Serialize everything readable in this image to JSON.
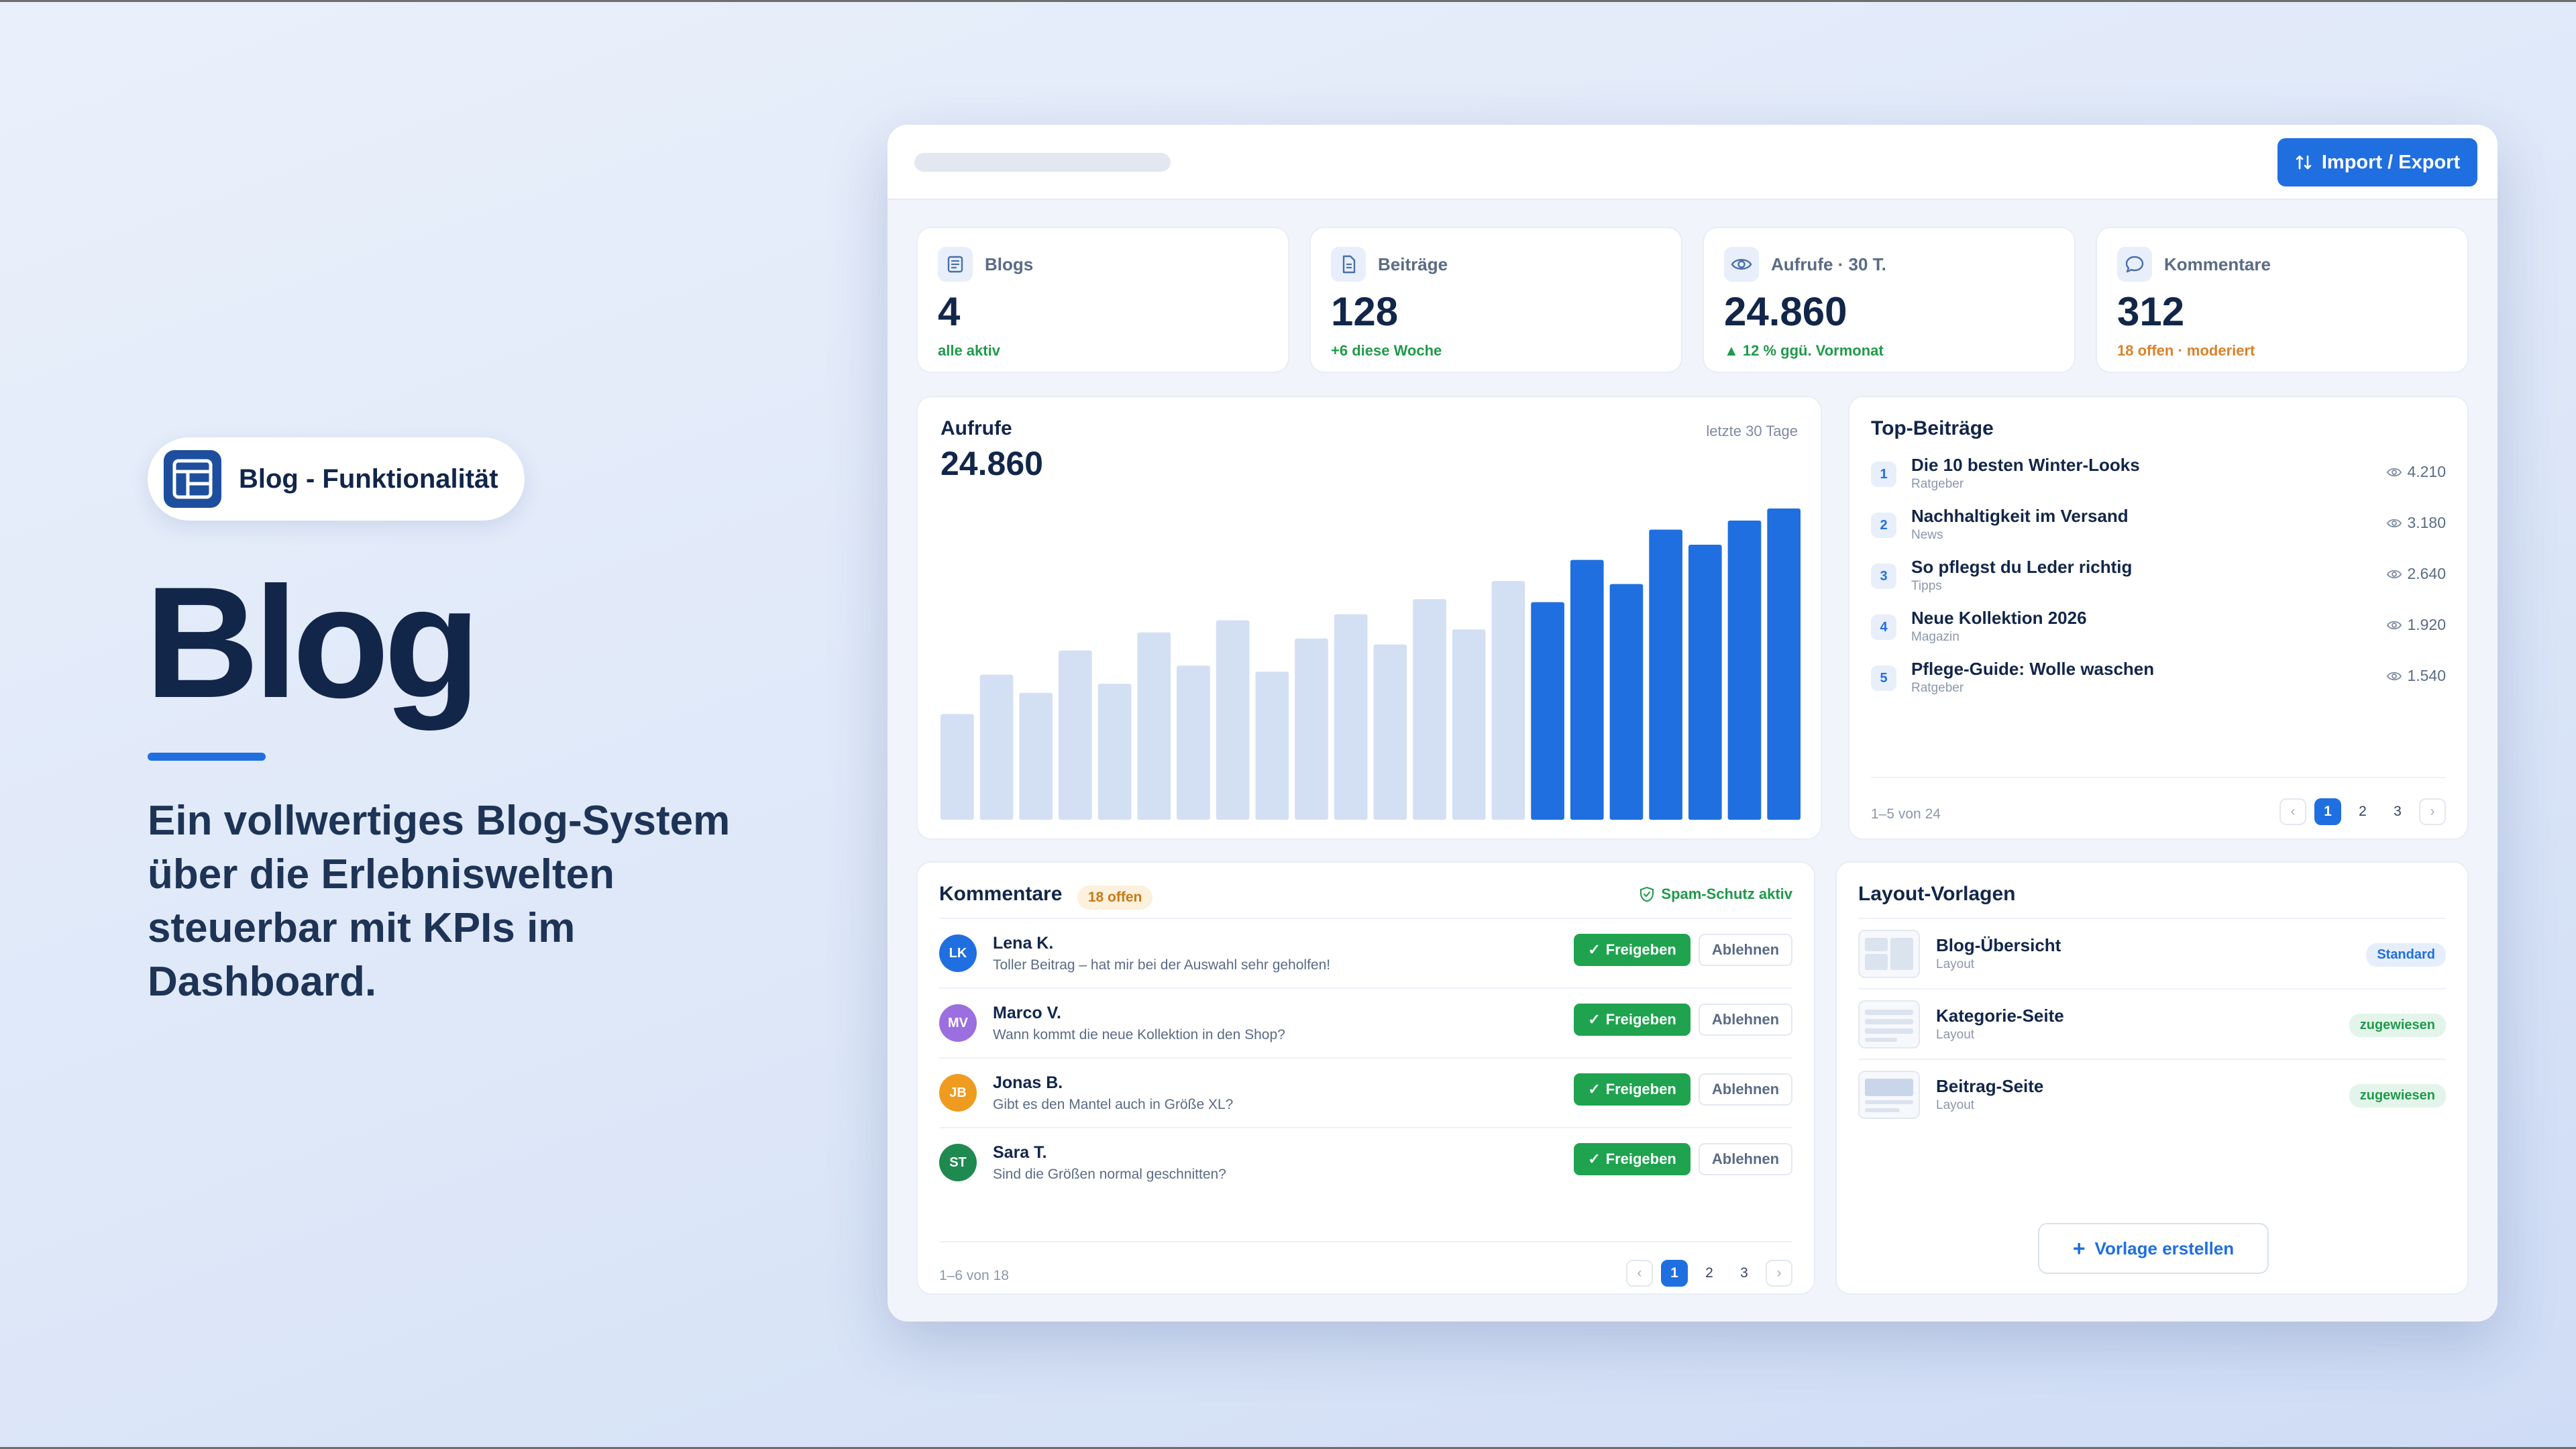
{
  "hero": {
    "pill_label": "Blog - Funktionalität",
    "title": "Blog",
    "description": "Ein vollwertiges Blog-System über die Erlebniswelten steuerbar mit KPIs im Dashboard."
  },
  "toolbar": {
    "import_export_label": "Import / Export"
  },
  "kpis": [
    {
      "label": "Blogs",
      "value": "4",
      "sub": "alle aktiv",
      "icon": "blog-icon"
    },
    {
      "label": "Beiträge",
      "value": "128",
      "sub": "+6 diese Woche",
      "icon": "document-icon"
    },
    {
      "label": "Aufrufe · 30 T.",
      "value": "24.860",
      "sub": "▲ 12 % ggü. Vormonat",
      "icon": "eye-icon"
    },
    {
      "label": "Kommentare",
      "value": "312",
      "sub": "18 offen · moderiert",
      "icon": "comment-icon"
    }
  ],
  "chart": {
    "title": "Aufrufe",
    "total": "24.860",
    "range": "letzte 30 Tage"
  },
  "chart_data": {
    "type": "bar",
    "title": "Aufrufe",
    "values": [
      35,
      48,
      42,
      56,
      45,
      62,
      51,
      66,
      49,
      60,
      68,
      58,
      73,
      63,
      79,
      72,
      86,
      78,
      96,
      91,
      99,
      103
    ],
    "highlighted_from_index": 15,
    "colors": {
      "muted": "#d3e0f3",
      "highlight": "#1f6fe0"
    },
    "grid": false
  },
  "top_posts": {
    "title": "Top-Beiträge",
    "items": [
      {
        "rank": "1",
        "title": "Die 10 besten Winter-Looks",
        "category": "Ratgeber",
        "views": "4.210"
      },
      {
        "rank": "2",
        "title": "Nachhaltigkeit im Versand",
        "category": "News",
        "views": "3.180"
      },
      {
        "rank": "3",
        "title": "So pflegst du Leder richtig",
        "category": "Tipps",
        "views": "2.640"
      },
      {
        "rank": "4",
        "title": "Neue Kollektion 2026",
        "category": "Magazin",
        "views": "1.920"
      },
      {
        "rank": "5",
        "title": "Pflege-Guide: Wolle waschen",
        "category": "Ratgeber",
        "views": "1.540"
      }
    ],
    "footer": "1–5 von 24",
    "pages": [
      "1",
      "2",
      "3"
    ],
    "prev": "‹",
    "next": "›"
  },
  "comments": {
    "title": "Kommentare",
    "badge": "18 offen",
    "spam": "Spam-Schutz aktiv",
    "approve_label": "Freigeben",
    "reject_label": "Ablehnen",
    "items": [
      {
        "initials": "LK",
        "name": "Lena K.",
        "text": "Toller Beitrag – hat mir bei der Auswahl sehr geholfen!",
        "color": "#1f6fe0"
      },
      {
        "initials": "MV",
        "name": "Marco V.",
        "text": "Wann kommt die neue Kollektion in den Shop?",
        "color": "#9b6fe0"
      },
      {
        "initials": "JB",
        "name": "Jonas B.",
        "text": "Gibt es den Mantel auch in Größe XL?",
        "color": "#ef9b1f"
      },
      {
        "initials": "ST",
        "name": "Sara T.",
        "text": "Sind die Größen normal geschnitten?",
        "color": "#1f8a4f"
      }
    ],
    "footer": "1–6 von 18",
    "pages": [
      "1",
      "2",
      "3"
    ],
    "prev": "‹",
    "next": "›"
  },
  "layouts": {
    "title": "Layout-Vorlagen",
    "items": [
      {
        "name": "Blog-Übersicht",
        "type": "Layout",
        "badge": "Standard"
      },
      {
        "name": "Kategorie-Seite",
        "type": "Layout",
        "badge": "zugewiesen"
      },
      {
        "name": "Beitrag-Seite",
        "type": "Layout",
        "badge": "zugewiesen"
      }
    ],
    "create_label": "Vorlage erstellen"
  }
}
